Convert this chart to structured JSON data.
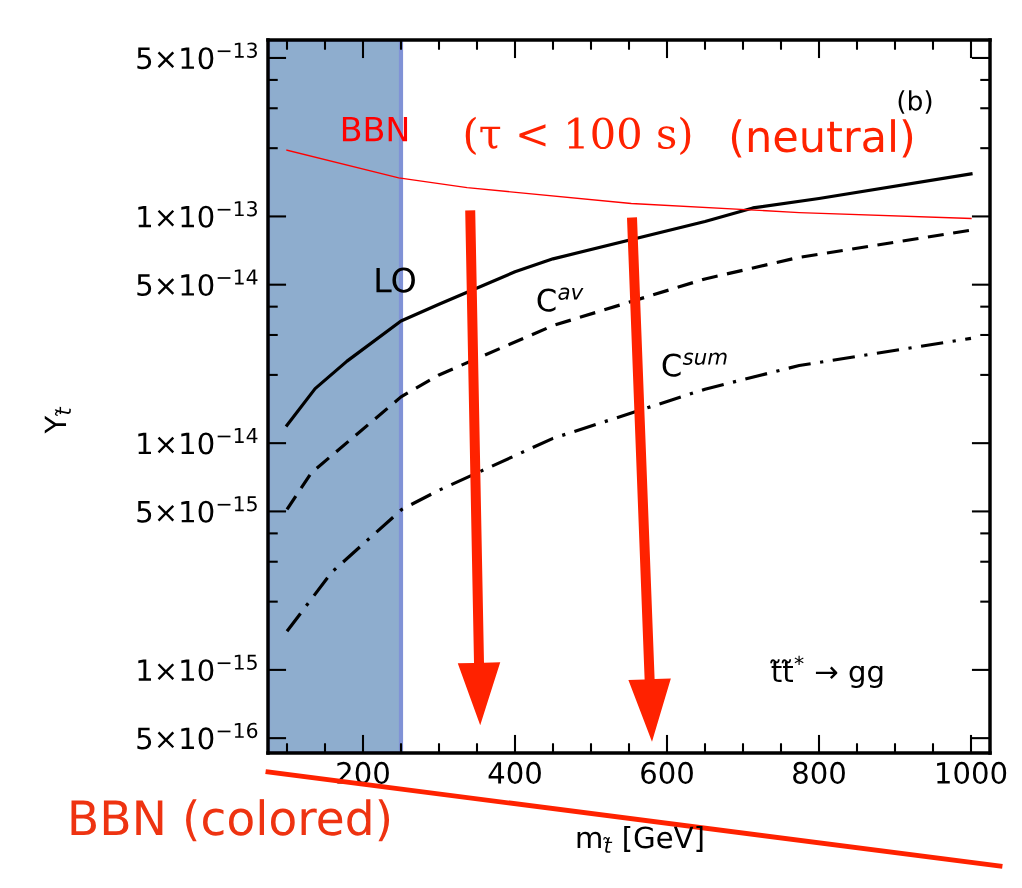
{
  "chart_data": {
    "type": "line",
    "xlabel": "m$_{t̃}$ [GeV]",
    "ylabel": "Y$_{t̃}$",
    "log": "y",
    "grid": false,
    "legend": false,
    "marker": "none",
    "xlim": [
      75,
      1025
    ],
    "ylim": [
      4.3e-16,
      6e-13
    ],
    "xticks": [
      {
        "value": 100,
        "label": null
      },
      {
        "value": 150,
        "label": null
      },
      200,
      {
        "value": 250,
        "label": null
      },
      {
        "value": 300,
        "label": null
      },
      {
        "value": 350,
        "label": null
      },
      400,
      {
        "value": 450,
        "label": null
      },
      {
        "value": 500,
        "label": null
      },
      {
        "value": 550,
        "label": null
      },
      600,
      {
        "value": 650,
        "label": null
      },
      {
        "value": 700,
        "label": null
      },
      {
        "value": 750,
        "label": null
      },
      800,
      {
        "value": 850,
        "label": null
      },
      {
        "value": 900,
        "label": null
      },
      {
        "value": 950,
        "label": null
      },
      1000
    ],
    "yticks": [
      {
        "value": 5e-16,
        "label": "5×10$^{−16}$"
      },
      {
        "value": 1e-15,
        "label": "1×10$^{−15}$"
      },
      {
        "value": 2e-15,
        "label": null
      },
      {
        "value": 3e-15,
        "label": null
      },
      {
        "value": 4e-15,
        "label": null
      },
      {
        "value": 5e-15,
        "label": "5×10$^{−15}$"
      },
      {
        "value": 1e-14,
        "label": "1×10$^{−14}$"
      },
      {
        "value": 2e-14,
        "label": null
      },
      {
        "value": 3e-14,
        "label": null
      },
      {
        "value": 4e-14,
        "label": null
      },
      {
        "value": 5e-14,
        "label": "5×10$^{−14}$"
      },
      {
        "value": 1e-13,
        "label": "1×10$^{−13}$"
      },
      {
        "value": 2e-13,
        "label": null
      },
      {
        "value": 3e-13,
        "label": null
      },
      {
        "value": 4e-13,
        "label": null
      },
      {
        "value": 5e-13,
        "label": "5×10$^{−13}$"
      }
    ],
    "series": [
      {
        "name": "LO",
        "color": "#000000",
        "line_style": "solid",
        "x": [
          100,
          137,
          179,
          250,
          300,
          400,
          450,
          650,
          713,
          800,
          1000
        ],
        "values": [
          1.2e-14,
          1.74e-14,
          2.3e-14,
          3.46e-14,
          4.1e-14,
          5.7e-14,
          6.5e-14,
          9.5e-14,
          1.09e-13,
          1.2e-13,
          1.54e-13
        ]
      },
      {
        "name": "C$^{av}$",
        "color": "#000000",
        "line_style": "dashed",
        "x": [
          100,
          132,
          250,
          300,
          450,
          650,
          774,
          1000
        ],
        "values": [
          5.1e-15,
          7.4e-15,
          1.6e-14,
          2e-14,
          3.3e-14,
          5.3e-14,
          6.6e-14,
          8.7e-14
        ]
      },
      {
        "name": "C$^{sum}$",
        "color": "#000000",
        "line_style": "dashdot",
        "x": [
          100,
          159,
          251,
          300,
          450,
          650,
          774,
          1000
        ],
        "values": [
          1.48e-15,
          2.7e-15,
          5.1e-15,
          6.2e-15,
          1.05e-14,
          1.73e-14,
          2.2e-14,
          2.9e-14
        ]
      },
      {
        "name": "BBN",
        "color": "#ff0000",
        "line_style": "solid",
        "x": [
          100,
          247,
          337,
          553,
          774,
          1000
        ],
        "values": [
          1.96e-13,
          1.48e-13,
          1.34e-13,
          1.14e-13,
          1.04e-13,
          9.8e-14
        ]
      }
    ],
    "bands": [
      {
        "axis": "x",
        "from": 75,
        "to": 250,
        "color": "#7b9fc6"
      }
    ],
    "annotations": [
      "(b)",
      "(τ < 100 s)",
      "(neutral)",
      "t̃t̃$^{*}$ → gg",
      "BBN (colored)"
    ]
  }
}
